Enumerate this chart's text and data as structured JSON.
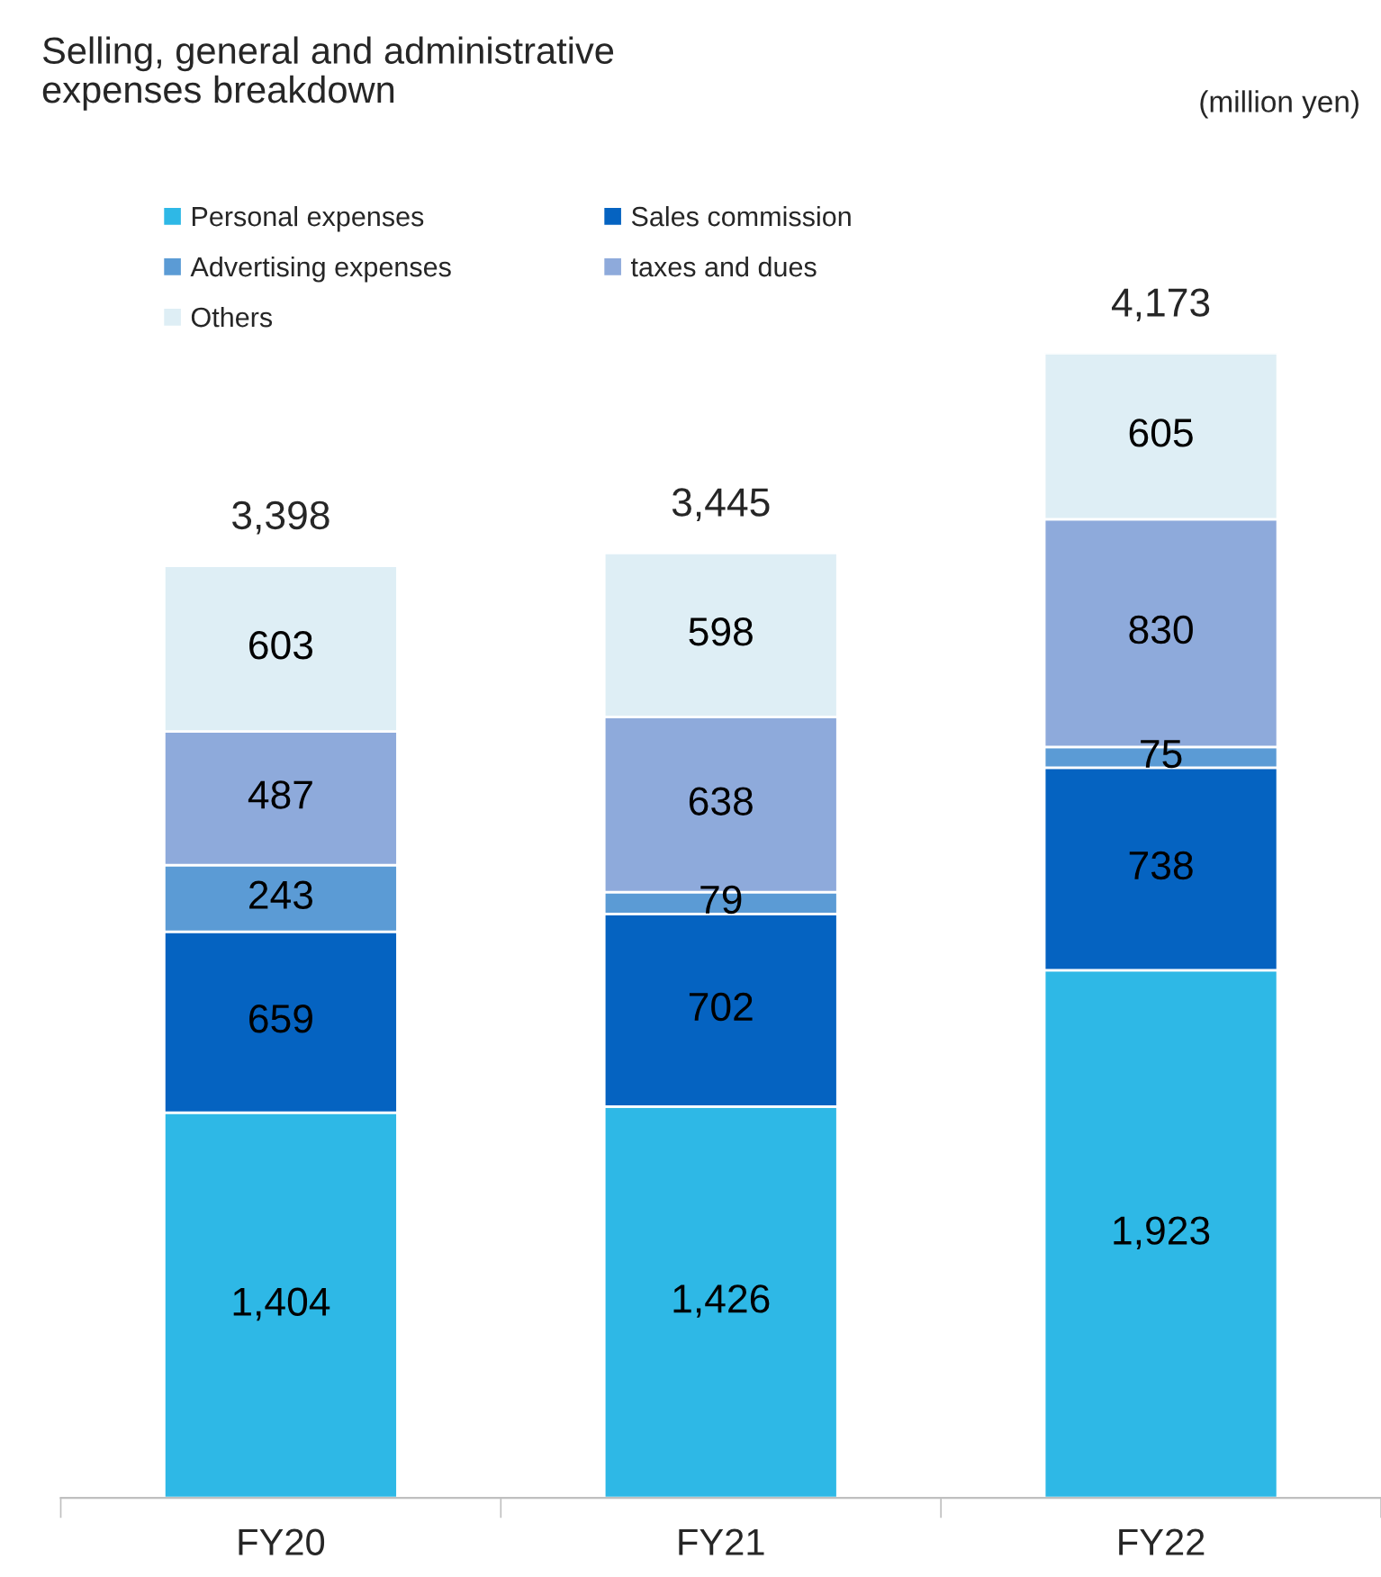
{
  "chart_data": {
    "type": "bar",
    "stacked": true,
    "legend": "top left",
    "grid": false,
    "title": "Selling, general and administrative\nexpenses breakdown",
    "annotations": [
      "(million yen)"
    ],
    "categories": [
      "FY20",
      "FY21",
      "FY22"
    ],
    "series": [
      {
        "name": "Personal expenses",
        "color": "#2eb8e6",
        "values": [
          1404,
          1426,
          1923
        ],
        "value_labels": [
          "1,404",
          "1,426",
          "1,923"
        ]
      },
      {
        "name": "Sales commission",
        "color": "#0563c1",
        "values": [
          659,
          702,
          738
        ],
        "value_labels": [
          "659",
          "702",
          "738"
        ]
      },
      {
        "name": "Advertising expenses",
        "color": "#5b9bd5",
        "values": [
          243,
          79,
          75
        ],
        "value_labels": [
          "243",
          "79",
          "75"
        ]
      },
      {
        "name": "taxes and dues",
        "color": "#8eaadb",
        "values": [
          487,
          638,
          830
        ],
        "value_labels": [
          "487",
          "638",
          "830"
        ]
      },
      {
        "name": "Others",
        "color": "#deeef5",
        "values": [
          603,
          598,
          605
        ],
        "value_labels": [
          "603",
          "598",
          "605"
        ]
      }
    ],
    "totals": [
      "3,398",
      "3,445",
      "4,173"
    ]
  }
}
